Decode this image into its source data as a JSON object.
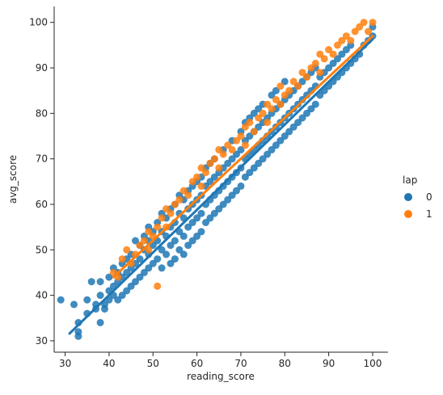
{
  "chart_data": {
    "type": "scatter",
    "title": "",
    "xlabel": "reading_score",
    "ylabel": "avg_score",
    "xlim": [
      27.5,
      103.5
    ],
    "ylim": [
      27.5,
      103.5
    ],
    "xticks": [
      30,
      40,
      50,
      60,
      70,
      80,
      90,
      100
    ],
    "yticks": [
      30,
      40,
      50,
      60,
      70,
      80,
      90,
      100
    ],
    "grid": false,
    "legend": {
      "title": "lap",
      "placement": "right",
      "entries": [
        "0",
        "1"
      ]
    },
    "regression": [
      {
        "series": "0",
        "x": [
          31,
          100
        ],
        "y": [
          31.6,
          96.3
        ]
      },
      {
        "series": "1",
        "x": [
          41,
          100
        ],
        "y": [
          44.0,
          97.0
        ]
      }
    ],
    "series": [
      {
        "name": "0",
        "color": "#1f77b4",
        "points": [
          [
            29,
            39
          ],
          [
            32,
            38
          ],
          [
            33,
            31
          ],
          [
            33,
            32
          ],
          [
            33,
            34
          ],
          [
            35,
            36
          ],
          [
            35,
            39
          ],
          [
            36,
            43
          ],
          [
            37,
            37
          ],
          [
            37,
            38
          ],
          [
            38,
            34
          ],
          [
            38,
            40
          ],
          [
            38,
            43
          ],
          [
            39,
            37
          ],
          [
            39,
            38
          ],
          [
            40,
            39
          ],
          [
            40,
            41
          ],
          [
            40,
            44
          ],
          [
            41,
            40
          ],
          [
            41,
            42
          ],
          [
            41,
            46
          ],
          [
            42,
            39
          ],
          [
            42,
            43
          ],
          [
            42,
            45
          ],
          [
            43,
            40
          ],
          [
            43,
            44
          ],
          [
            43,
            47
          ],
          [
            44,
            41
          ],
          [
            44,
            45
          ],
          [
            44,
            48
          ],
          [
            45,
            42
          ],
          [
            45,
            46
          ],
          [
            45,
            49
          ],
          [
            46,
            43
          ],
          [
            46,
            47
          ],
          [
            46,
            52
          ],
          [
            47,
            44
          ],
          [
            47,
            48
          ],
          [
            47,
            51
          ],
          [
            48,
            45
          ],
          [
            48,
            50
          ],
          [
            48,
            53
          ],
          [
            49,
            46
          ],
          [
            49,
            49
          ],
          [
            49,
            52
          ],
          [
            49,
            55
          ],
          [
            50,
            47
          ],
          [
            50,
            51
          ],
          [
            50,
            54
          ],
          [
            51,
            48
          ],
          [
            51,
            52
          ],
          [
            51,
            56
          ],
          [
            52,
            46
          ],
          [
            52,
            50
          ],
          [
            52,
            54
          ],
          [
            52,
            58
          ],
          [
            53,
            49
          ],
          [
            53,
            53
          ],
          [
            53,
            57
          ],
          [
            54,
            47
          ],
          [
            54,
            51
          ],
          [
            54,
            55
          ],
          [
            54,
            59
          ],
          [
            55,
            48
          ],
          [
            55,
            52
          ],
          [
            55,
            56
          ],
          [
            55,
            60
          ],
          [
            56,
            50
          ],
          [
            56,
            54
          ],
          [
            56,
            58
          ],
          [
            56,
            62
          ],
          [
            57,
            49
          ],
          [
            57,
            53
          ],
          [
            57,
            57
          ],
          [
            57,
            61
          ],
          [
            58,
            51
          ],
          [
            58,
            55
          ],
          [
            58,
            59
          ],
          [
            58,
            63
          ],
          [
            59,
            52
          ],
          [
            59,
            56
          ],
          [
            59,
            60
          ],
          [
            59,
            64
          ],
          [
            60,
            53
          ],
          [
            60,
            57
          ],
          [
            60,
            61
          ],
          [
            60,
            65
          ],
          [
            61,
            54
          ],
          [
            61,
            58
          ],
          [
            61,
            62
          ],
          [
            61,
            66
          ],
          [
            62,
            56
          ],
          [
            62,
            60
          ],
          [
            62,
            64
          ],
          [
            62,
            68
          ],
          [
            63,
            57
          ],
          [
            63,
            61
          ],
          [
            63,
            65
          ],
          [
            63,
            69
          ],
          [
            64,
            58
          ],
          [
            64,
            62
          ],
          [
            64,
            66
          ],
          [
            64,
            70
          ],
          [
            65,
            59
          ],
          [
            65,
            63
          ],
          [
            65,
            67
          ],
          [
            66,
            60
          ],
          [
            66,
            64
          ],
          [
            66,
            68
          ],
          [
            66,
            72
          ],
          [
            67,
            61
          ],
          [
            67,
            65
          ],
          [
            67,
            69
          ],
          [
            68,
            62
          ],
          [
            68,
            66
          ],
          [
            68,
            70
          ],
          [
            68,
            74
          ],
          [
            69,
            63
          ],
          [
            69,
            67
          ],
          [
            69,
            71
          ],
          [
            70,
            64
          ],
          [
            70,
            68
          ],
          [
            70,
            72
          ],
          [
            70,
            76
          ],
          [
            71,
            66
          ],
          [
            71,
            70
          ],
          [
            71,
            74
          ],
          [
            71,
            78
          ],
          [
            72,
            67
          ],
          [
            72,
            71
          ],
          [
            72,
            75
          ],
          [
            72,
            79
          ],
          [
            73,
            68
          ],
          [
            73,
            72
          ],
          [
            73,
            76
          ],
          [
            73,
            80
          ],
          [
            74,
            69
          ],
          [
            74,
            73
          ],
          [
            74,
            77
          ],
          [
            74,
            81
          ],
          [
            75,
            70
          ],
          [
            75,
            74
          ],
          [
            75,
            78
          ],
          [
            75,
            82
          ],
          [
            76,
            71
          ],
          [
            76,
            75
          ],
          [
            76,
            79
          ],
          [
            77,
            72
          ],
          [
            77,
            76
          ],
          [
            77,
            80
          ],
          [
            77,
            84
          ],
          [
            78,
            73
          ],
          [
            78,
            77
          ],
          [
            78,
            81
          ],
          [
            78,
            85
          ],
          [
            79,
            74
          ],
          [
            79,
            78
          ],
          [
            79,
            82
          ],
          [
            80,
            75
          ],
          [
            80,
            79
          ],
          [
            80,
            83
          ],
          [
            80,
            87
          ],
          [
            81,
            76
          ],
          [
            81,
            80
          ],
          [
            81,
            84
          ],
          [
            82,
            77
          ],
          [
            82,
            81
          ],
          [
            82,
            85
          ],
          [
            83,
            78
          ],
          [
            83,
            82
          ],
          [
            83,
            86
          ],
          [
            84,
            79
          ],
          [
            84,
            83
          ],
          [
            84,
            87
          ],
          [
            85,
            80
          ],
          [
            85,
            84
          ],
          [
            85,
            88
          ],
          [
            86,
            81
          ],
          [
            86,
            85
          ],
          [
            86,
            89
          ],
          [
            87,
            82
          ],
          [
            87,
            86
          ],
          [
            87,
            90
          ],
          [
            88,
            84
          ],
          [
            88,
            88
          ],
          [
            89,
            85
          ],
          [
            89,
            89
          ],
          [
            90,
            86
          ],
          [
            90,
            90
          ],
          [
            91,
            87
          ],
          [
            91,
            91
          ],
          [
            92,
            88
          ],
          [
            92,
            92
          ],
          [
            93,
            89
          ],
          [
            93,
            93
          ],
          [
            94,
            90
          ],
          [
            94,
            94
          ],
          [
            95,
            91
          ],
          [
            95,
            95
          ],
          [
            96,
            92
          ],
          [
            97,
            93
          ],
          [
            98,
            95
          ],
          [
            99,
            96
          ],
          [
            100,
            97
          ],
          [
            100,
            99
          ]
        ]
      },
      {
        "name": "1",
        "color": "#ff7f0e",
        "points": [
          [
            41,
            45
          ],
          [
            42,
            44
          ],
          [
            43,
            48
          ],
          [
            44,
            50
          ],
          [
            45,
            47
          ],
          [
            46,
            49
          ],
          [
            47,
            51
          ],
          [
            48,
            52
          ],
          [
            49,
            50
          ],
          [
            49,
            54
          ],
          [
            50,
            53
          ],
          [
            51,
            42
          ],
          [
            51,
            55
          ],
          [
            52,
            57
          ],
          [
            53,
            55
          ],
          [
            53,
            59
          ],
          [
            54,
            58
          ],
          [
            55,
            60
          ],
          [
            56,
            61
          ],
          [
            57,
            63
          ],
          [
            58,
            62
          ],
          [
            59,
            65
          ],
          [
            60,
            66
          ],
          [
            61,
            64
          ],
          [
            61,
            68
          ],
          [
            62,
            67
          ],
          [
            63,
            69
          ],
          [
            64,
            70
          ],
          [
            65,
            68
          ],
          [
            65,
            72
          ],
          [
            66,
            71
          ],
          [
            67,
            73
          ],
          [
            68,
            72
          ],
          [
            69,
            74
          ],
          [
            70,
            75
          ],
          [
            71,
            73
          ],
          [
            71,
            77
          ],
          [
            72,
            78
          ],
          [
            73,
            76
          ],
          [
            74,
            79
          ],
          [
            75,
            80
          ],
          [
            76,
            78
          ],
          [
            76,
            82
          ],
          [
            77,
            81
          ],
          [
            78,
            83
          ],
          [
            79,
            82
          ],
          [
            79,
            86
          ],
          [
            80,
            84
          ],
          [
            81,
            85
          ],
          [
            82,
            87
          ],
          [
            83,
            86
          ],
          [
            84,
            89
          ],
          [
            85,
            88
          ],
          [
            86,
            90
          ],
          [
            87,
            91
          ],
          [
            88,
            89
          ],
          [
            88,
            93
          ],
          [
            89,
            92
          ],
          [
            90,
            94
          ],
          [
            91,
            93
          ],
          [
            92,
            95
          ],
          [
            93,
            96
          ],
          [
            94,
            97
          ],
          [
            95,
            96
          ],
          [
            96,
            98
          ],
          [
            97,
            99
          ],
          [
            98,
            100
          ],
          [
            99,
            98
          ],
          [
            100,
            100
          ]
        ]
      }
    ]
  }
}
